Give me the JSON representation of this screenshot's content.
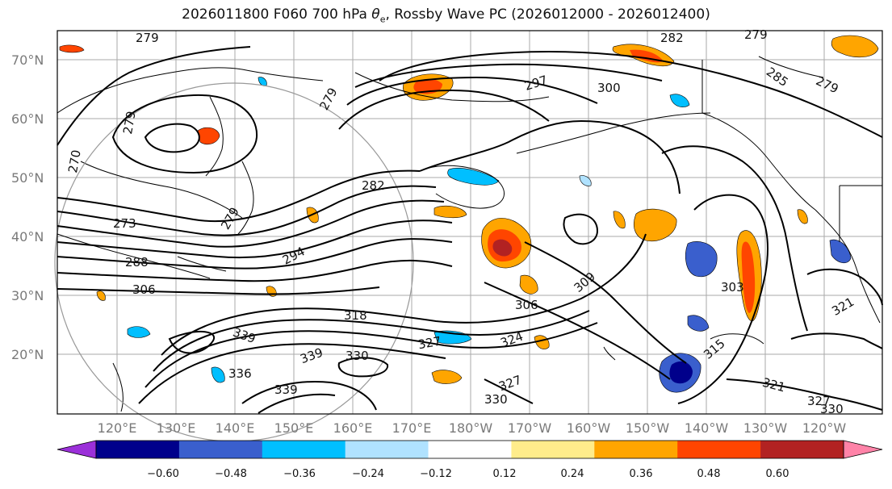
{
  "title_parts": {
    "prefix": "2026011800 F060 700 hPa ",
    "theta": "θ",
    "theta_sub": "e",
    "suffix": ", Rossby Wave PC (2026012000 - 2026012400)"
  },
  "lat_labels": [
    "70°N",
    "60°N",
    "50°N",
    "40°N",
    "30°N",
    "20°N"
  ],
  "lon_labels": [
    "120°E",
    "130°E",
    "140°E",
    "150°E",
    "160°E",
    "170°E",
    "180°W",
    "170°W",
    "160°W",
    "150°W",
    "140°W",
    "130°W",
    "120°W"
  ],
  "contour_labels": [
    "279",
    "282",
    "279",
    "279",
    "297",
    "300",
    "285",
    "279",
    "270",
    "279",
    "282",
    "279",
    "273",
    "288",
    "294",
    "306",
    "309",
    "306",
    "303",
    "318",
    "339",
    "336",
    "339",
    "330",
    "327",
    "324",
    "315",
    "321",
    "327",
    "330",
    "339",
    "327",
    "330",
    "321"
  ],
  "colorbar": {
    "colors": [
      "#9b30d9",
      "#00008b",
      "#3a5fcd",
      "#00bfff",
      "#b0e2ff",
      "#ffffff",
      "#ffec8b",
      "#ffa500",
      "#ff4500",
      "#b22222",
      "#ff83a8"
    ],
    "tick_labels": [
      "−0.60",
      "−0.48",
      "−0.36",
      "−0.24",
      "−0.12",
      "0.12",
      "0.24",
      "0.36",
      "0.48",
      "0.60"
    ]
  }
}
